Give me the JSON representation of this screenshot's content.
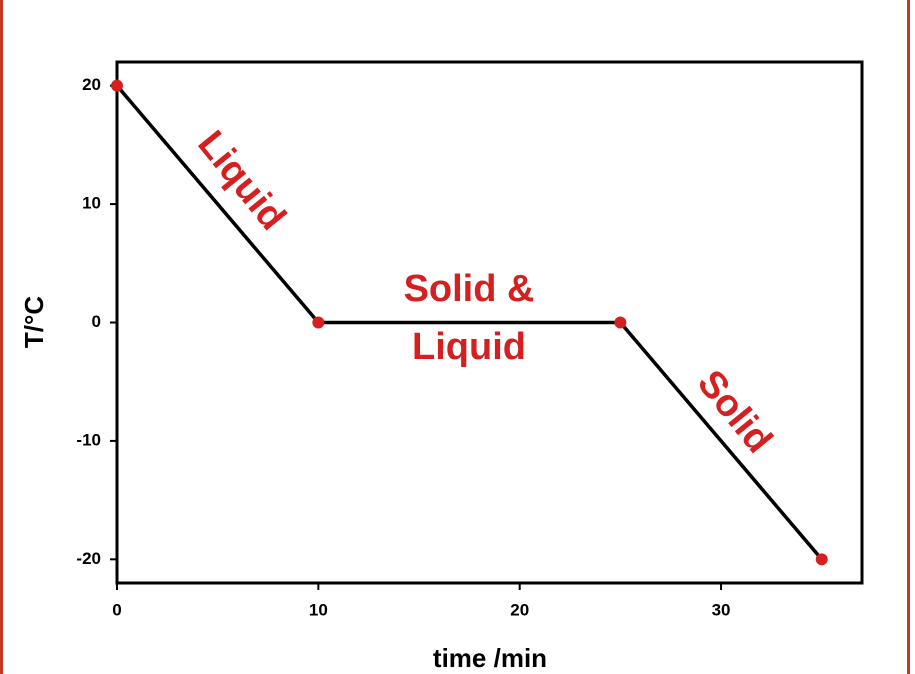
{
  "chart_data": {
    "type": "line",
    "x_label": "time /min",
    "y_label": "T/°C",
    "x": [
      0,
      10,
      25,
      35
    ],
    "series": [
      {
        "color": "#000000",
        "marker_color": "#d42020",
        "values": [
          20,
          0,
          0,
          -20
        ]
      }
    ],
    "xlim": [
      0,
      37
    ],
    "xticks": [
      0,
      10,
      20,
      30
    ],
    "ylim": [
      -22,
      22
    ],
    "yticks": [
      -20,
      -10,
      0,
      10,
      20
    ],
    "annotations": [
      {
        "lines": [
          "Liquid"
        ],
        "color": "#d42020"
      },
      {
        "lines": [
          "Solid &",
          "Liquid"
        ],
        "color": "#d42020"
      },
      {
        "lines": [
          "Solid"
        ],
        "color": "#d42020"
      }
    ]
  }
}
